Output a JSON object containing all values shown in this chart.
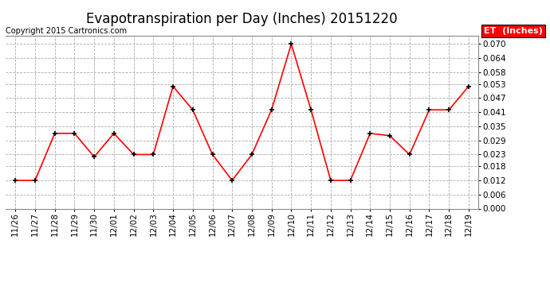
{
  "title": "Evapotranspiration per Day (Inches) 20151220",
  "copyright": "Copyright 2015 Cartronics.com",
  "legend_label": "ET  (Inches)",
  "legend_bg": "#ff0000",
  "legend_text_color": "#ffffff",
  "dates": [
    "11/26",
    "11/27",
    "11/28",
    "11/29",
    "11/30",
    "12/01",
    "12/02",
    "12/03",
    "12/04",
    "12/05",
    "12/06",
    "12/07",
    "12/08",
    "12/09",
    "12/10",
    "12/11",
    "12/12",
    "12/13",
    "12/14",
    "12/15",
    "12/16",
    "12/17",
    "12/18",
    "12/19"
  ],
  "values": [
    0.012,
    0.012,
    0.032,
    0.032,
    0.022,
    0.032,
    0.023,
    0.023,
    0.052,
    0.042,
    0.023,
    0.012,
    0.023,
    0.042,
    0.07,
    0.042,
    0.012,
    0.012,
    0.032,
    0.031,
    0.023,
    0.042,
    0.042,
    0.052
  ],
  "line_color": "#ff0000",
  "marker": "+",
  "marker_color": "#000000",
  "ylim": [
    0.0,
    0.0735
  ],
  "yticks": [
    0.0,
    0.006,
    0.012,
    0.018,
    0.023,
    0.029,
    0.035,
    0.041,
    0.047,
    0.053,
    0.058,
    0.064,
    0.07
  ],
  "bg_color": "#ffffff",
  "grid_color": "#aaaaaa",
  "grid_style": "--",
  "title_fontsize": 12,
  "copyright_fontsize": 7,
  "tick_fontsize": 7.5,
  "legend_fontsize": 8
}
